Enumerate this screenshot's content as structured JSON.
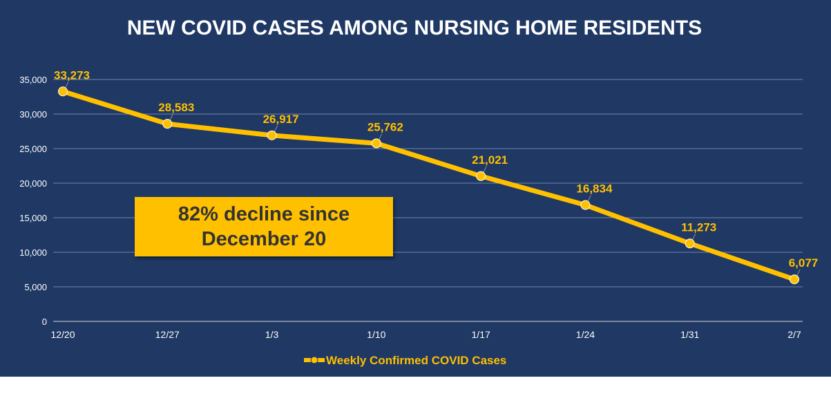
{
  "chart_data": {
    "type": "line",
    "title": "NEW COVID CASES AMONG NURSING HOME RESIDENTS",
    "categories": [
      "12/20",
      "12/27",
      "1/3",
      "1/10",
      "1/17",
      "1/24",
      "1/31",
      "2/7"
    ],
    "series": [
      {
        "name": "Weekly Confirmed COVID Cases",
        "values": [
          33273,
          28583,
          26917,
          25762,
          21021,
          16834,
          11273,
          6077
        ],
        "labels": [
          "33,273",
          "28,583",
          "26,917",
          "25,762",
          "21,021",
          "16,834",
          "11,273",
          "6,077"
        ]
      }
    ],
    "yticks": [
      "0",
      "5,000",
      "10,000",
      "15,000",
      "20,000",
      "25,000",
      "30,000",
      "35,000"
    ],
    "ylim": [
      0,
      35000
    ],
    "grid": true,
    "legend_position": "bottom",
    "colors": {
      "background": "#1f3864",
      "series": "#ffc000",
      "grid": "#8ea3c6",
      "text": "#ffffff"
    }
  },
  "annotation": {
    "line1": "82% decline since",
    "line2": "December 20"
  }
}
